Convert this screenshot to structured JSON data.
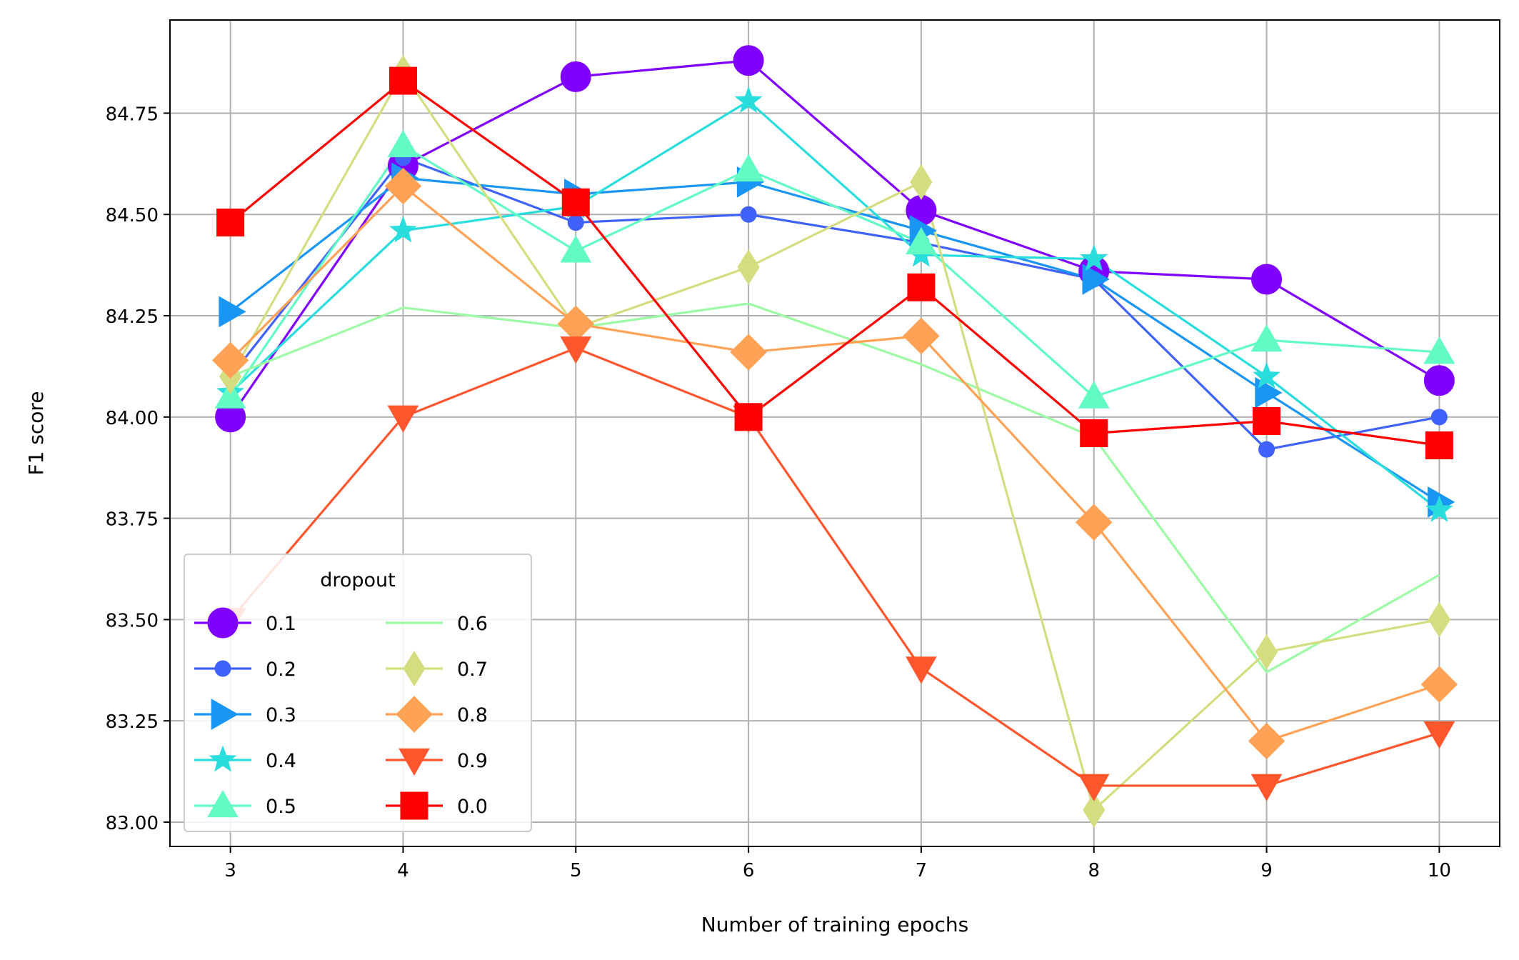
{
  "chart_data": {
    "type": "line",
    "title": "",
    "xlabel": "Number of training epochs",
    "ylabel": "F1 score",
    "x": [
      3,
      4,
      5,
      6,
      7,
      8,
      9,
      10
    ],
    "xlim": [
      2.65,
      10.35
    ],
    "ylim": [
      82.94,
      84.98
    ],
    "xticks": [
      3,
      4,
      5,
      6,
      7,
      8,
      9,
      10
    ],
    "yticks": [
      "83.00",
      "83.25",
      "83.50",
      "83.75",
      "84.00",
      "84.25",
      "84.50",
      "84.75"
    ],
    "grid": true,
    "legend": {
      "title": "dropout",
      "position": "lower-left",
      "columns": 2
    },
    "series": [
      {
        "name": "0.1",
        "color": "#8000ff",
        "marker": "circle-large",
        "values": [
          84.0,
          84.62,
          84.84,
          84.88,
          84.51,
          84.36,
          84.34,
          84.09
        ]
      },
      {
        "name": "0.2",
        "color": "#4062fa",
        "marker": "circle-small",
        "values": [
          84.1,
          84.64,
          84.48,
          84.5,
          84.43,
          84.34,
          83.92,
          84.0
        ]
      },
      {
        "name": "0.3",
        "color": "#1996f3",
        "marker": "triangle-right",
        "values": [
          84.26,
          84.59,
          84.55,
          84.58,
          84.46,
          84.34,
          84.06,
          83.79
        ]
      },
      {
        "name": "0.4",
        "color": "#2adddd",
        "marker": "star",
        "values": [
          84.06,
          84.46,
          84.52,
          84.78,
          84.4,
          84.39,
          84.1,
          83.77
        ]
      },
      {
        "name": "0.5",
        "color": "#62fbc4",
        "marker": "triangle-up",
        "values": [
          84.05,
          84.67,
          84.41,
          84.61,
          84.43,
          84.05,
          84.19,
          84.16
        ]
      },
      {
        "name": "0.6",
        "color": "#9cfba4",
        "marker": "none",
        "values": [
          84.1,
          84.27,
          84.22,
          84.28,
          84.13,
          83.95,
          83.37,
          83.61
        ]
      },
      {
        "name": "0.7",
        "color": "#d4dd80",
        "marker": "diamond",
        "values": [
          84.1,
          84.85,
          84.22,
          84.37,
          84.58,
          83.03,
          83.42,
          83.5
        ]
      },
      {
        "name": "0.8",
        "color": "#ffa256",
        "marker": "diamond-large",
        "values": [
          84.14,
          84.57,
          84.23,
          84.16,
          84.2,
          83.74,
          83.2,
          83.34
        ]
      },
      {
        "name": "0.9",
        "color": "#ff562d",
        "marker": "triangle-down",
        "values": [
          83.5,
          84.0,
          84.17,
          84.0,
          83.38,
          83.09,
          83.09,
          83.22
        ]
      },
      {
        "name": "0.0",
        "color": "#ff0000",
        "marker": "square",
        "values": [
          84.48,
          84.83,
          84.53,
          84.0,
          84.32,
          83.96,
          83.99,
          83.93
        ]
      }
    ]
  }
}
